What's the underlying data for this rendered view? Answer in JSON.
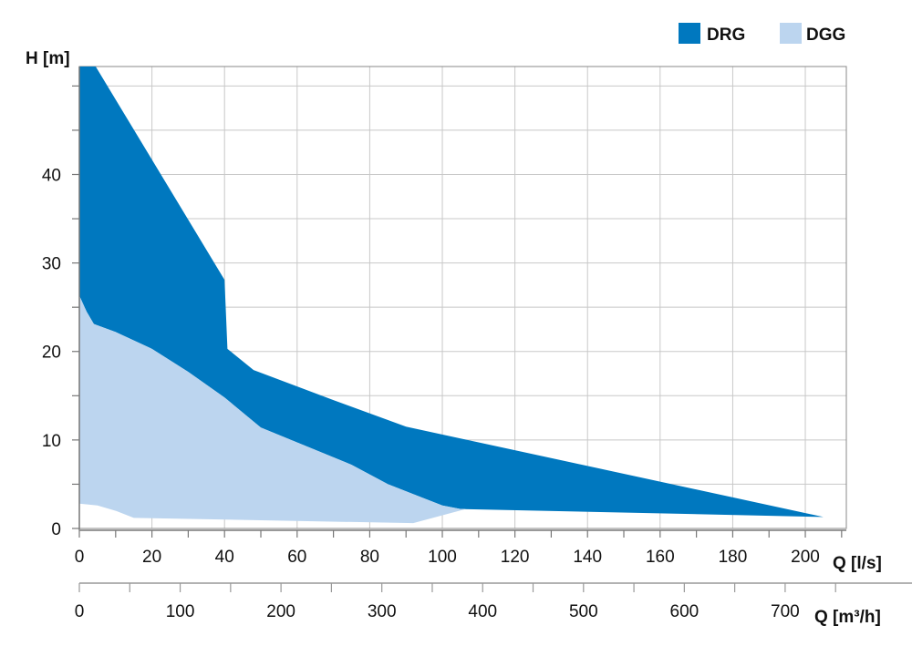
{
  "chart_data": {
    "type": "area",
    "ylabel": "H [m]",
    "xlabel": "Q [l/s]",
    "x2label": "Q [m³/h]",
    "xlim": [
      0,
      211.3
    ],
    "ylim": [
      0,
      52.2
    ],
    "xticks": [
      0,
      20,
      40,
      60,
      80,
      100,
      120,
      140,
      160,
      180,
      200
    ],
    "x2ticks": [
      0,
      100,
      200,
      300,
      400,
      500,
      600,
      700
    ],
    "yticks": [
      0,
      10,
      20,
      30,
      40
    ],
    "grid": true,
    "legend_position": "top-right",
    "colors": {
      "DRG": "#0078bf",
      "DGG": "#bcd5ef"
    },
    "series": [
      {
        "name": "DRG",
        "polygon": [
          [
            0,
            52.2
          ],
          [
            4.5,
            52.2
          ],
          [
            40,
            28.1
          ],
          [
            40.8,
            20.3
          ],
          [
            48,
            17.9
          ],
          [
            70,
            14.5
          ],
          [
            90,
            11.5
          ],
          [
            205,
            1.3
          ],
          [
            105,
            2.2
          ],
          [
            100,
            2.6
          ],
          [
            95,
            3.4
          ],
          [
            85,
            5
          ],
          [
            75,
            7.2
          ],
          [
            50,
            11.4
          ],
          [
            40,
            14.8
          ],
          [
            30,
            17.7
          ],
          [
            20,
            20.3
          ],
          [
            10,
            22.2
          ],
          [
            4,
            23.1
          ],
          [
            2,
            24.5
          ],
          [
            0,
            26.3
          ]
        ]
      },
      {
        "name": "DGG",
        "polygon": [
          [
            0,
            26.3
          ],
          [
            2,
            24.5
          ],
          [
            4,
            23.1
          ],
          [
            10,
            22.2
          ],
          [
            20,
            20.3
          ],
          [
            30,
            17.7
          ],
          [
            40,
            14.8
          ],
          [
            50,
            11.4
          ],
          [
            75,
            7.2
          ],
          [
            85,
            5
          ],
          [
            95,
            3.4
          ],
          [
            100,
            2.6
          ],
          [
            105,
            2.2
          ],
          [
            106.5,
            2.2
          ],
          [
            92,
            0.6
          ],
          [
            15,
            1.2
          ],
          [
            10,
            2
          ],
          [
            5,
            2.6
          ],
          [
            0,
            2.8
          ]
        ]
      }
    ]
  }
}
